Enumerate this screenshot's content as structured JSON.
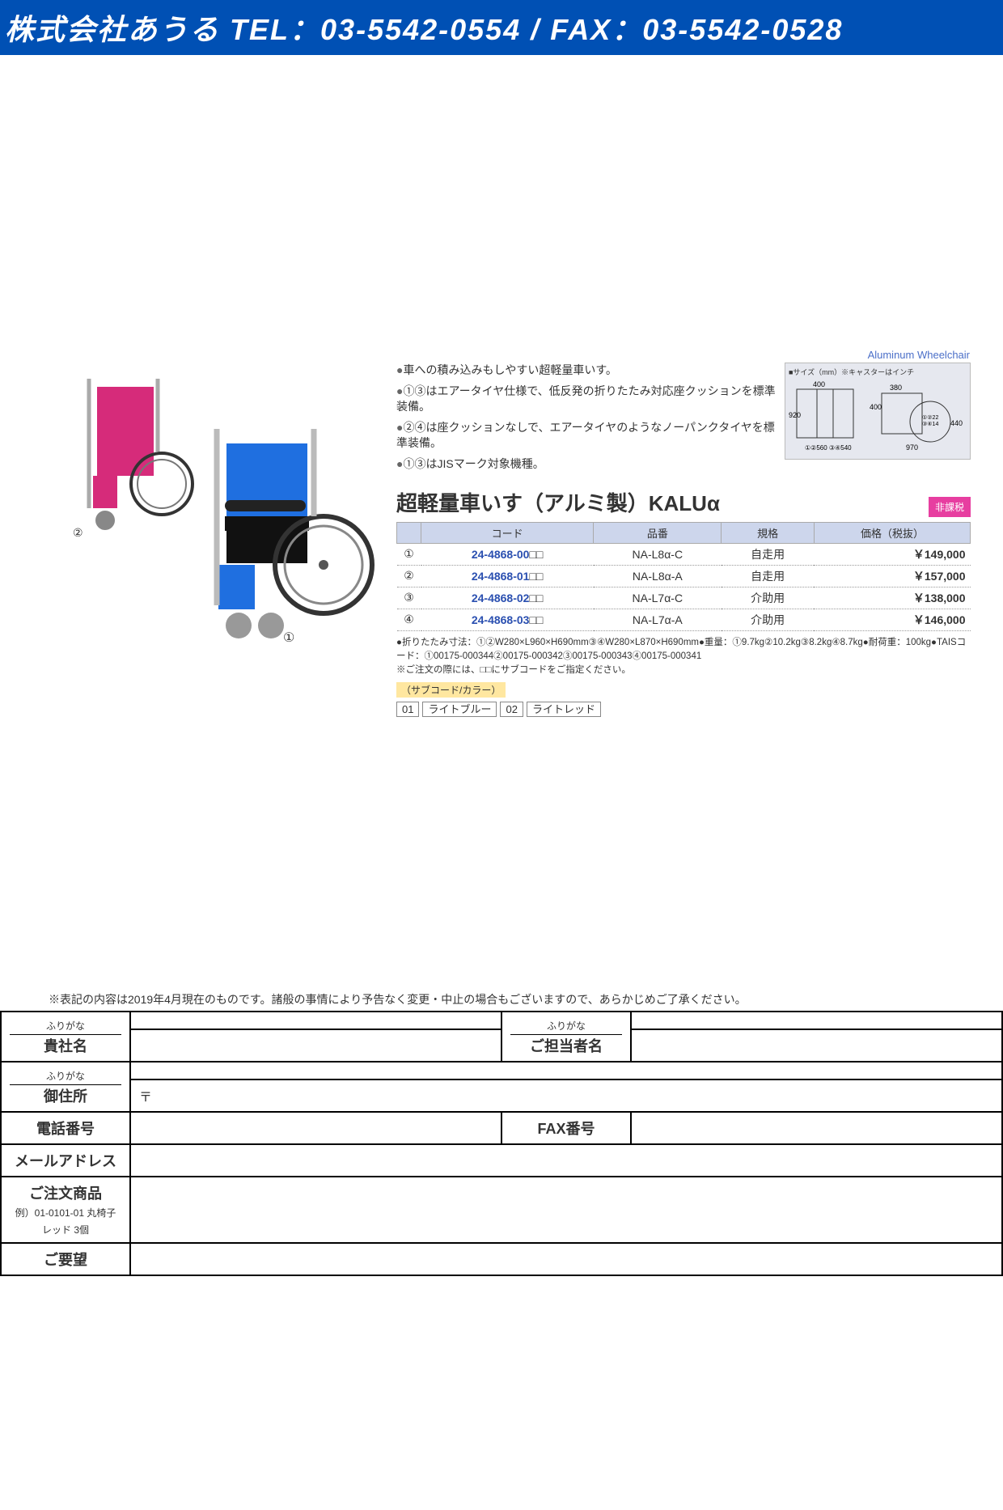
{
  "header": {
    "company": "株式会社あうる",
    "tel_label": "TEL：",
    "tel": "03-5542-0554",
    "sep": " / ",
    "fax_label": "FAX：",
    "fax": "03-5542-0528",
    "bg_color": "#0050b4"
  },
  "category_label": "Aluminum Wheelchair",
  "bullets": [
    "車への積み込みもしやすい超軽量車いす。",
    "①③はエアータイヤ仕様で、低反発の折りたたみ対応座クッションを標準装備。",
    "②④は座クッションなしで、エアータイヤのようなノーパンクタイヤを標準装備。",
    "①③はJISマーク対象機種。"
  ],
  "size_box": {
    "title": "■サイズ（mm）※キャスターはインチ",
    "dims": [
      "400",
      "380",
      "920",
      "400",
      "440",
      "①②22 ③④14",
      "①②560 ③④540",
      "970"
    ]
  },
  "product_title": "超軽量車いす（アルミ製）KALUα",
  "tax_badge": "非課税",
  "spec_headers": [
    "",
    "コード",
    "品番",
    "規格",
    "価格（税抜）"
  ],
  "spec_rows": [
    {
      "n": "①",
      "code": "24-4868-00",
      "suffix": "□□",
      "model": "NA-L8α-C",
      "type": "自走用",
      "price": "￥149,000"
    },
    {
      "n": "②",
      "code": "24-4868-01",
      "suffix": "□□",
      "model": "NA-L8α-A",
      "type": "自走用",
      "price": "￥157,000"
    },
    {
      "n": "③",
      "code": "24-4868-02",
      "suffix": "□□",
      "model": "NA-L7α-C",
      "type": "介助用",
      "price": "￥138,000"
    },
    {
      "n": "④",
      "code": "24-4868-03",
      "suffix": "□□",
      "model": "NA-L7α-A",
      "type": "介助用",
      "price": "￥146,000"
    }
  ],
  "fineprint": "●折りたたみ寸法：①②W280×L960×H690mm③④W280×L870×H690mm●重量：①9.7kg②10.2kg③8.2kg④8.7kg●耐荷重：100kg●TAISコード：①00175-000344②00175-000342③00175-000343④00175-000341\n※ご注文の際には、□□にサブコードをご指定ください。",
  "subcode_label": "（サブコード/カラー）",
  "subcode_opts": [
    {
      "code": "01",
      "name": "ライトブルー"
    },
    {
      "code": "02",
      "name": "ライトレッド"
    }
  ],
  "wheelchairs": {
    "small": {
      "color": "#d62b7a",
      "label": "②"
    },
    "large": {
      "color": "#1f6fe0",
      "label": "①"
    }
  },
  "disclaimer": "※表記の内容は2019年4月現在のものです。諸般の事情により予告なく変更・中止の場合もございますので、あらかじめご了承ください。",
  "form": {
    "furigana": "ふりがな",
    "kisya": "貴社名",
    "tantou": "ご担当者名",
    "address": "御住所",
    "postal": "〒",
    "tel": "電話番号",
    "fax": "FAX番号",
    "mail": "メールアドレス",
    "order": "ご注文商品",
    "order_example": "例）01-0101-01 丸椅子 レッド 3個",
    "request": "ご要望"
  },
  "colors": {
    "header_bg": "#0050b4",
    "table_header": "#cdd6ec",
    "code_link": "#2a4fb0",
    "badge": "#e73ea0",
    "subcode_bg": "#ffe7a0"
  }
}
